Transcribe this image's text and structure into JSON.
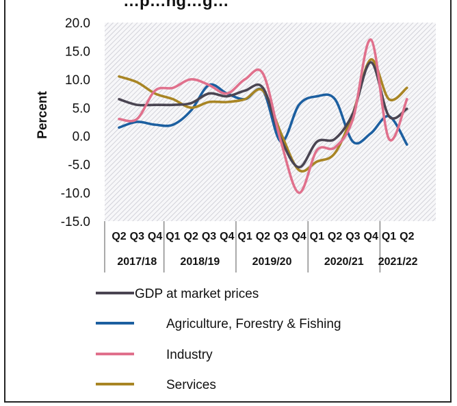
{
  "chart_data": {
    "type": "line",
    "title": "…p…ng…g…",
    "ylabel": "Percent",
    "ylim": [
      -15,
      20
    ],
    "yticks": [
      "20.0",
      "15.0",
      "10.0",
      "5.0",
      "0.0",
      "-5.0",
      "-10.0",
      "-15.0"
    ],
    "quarters": [
      "Q2",
      "Q3",
      "Q4",
      "Q1",
      "Q2",
      "Q3",
      "Q4",
      "Q1",
      "Q2",
      "Q3",
      "Q4",
      "Q1",
      "Q2",
      "Q3",
      "Q4",
      "Q1",
      "Q2"
    ],
    "years": [
      {
        "label": "2017/18"
      },
      {
        "label": "2018/19"
      },
      {
        "label": "2019/20"
      },
      {
        "label": "2020/21"
      },
      {
        "label": "2021/22"
      }
    ],
    "year_spans": [
      [
        0,
        2
      ],
      [
        3,
        6
      ],
      [
        7,
        10
      ],
      [
        11,
        14
      ],
      [
        15,
        16
      ]
    ],
    "series": [
      {
        "name": "GDP at market prices",
        "color": "#4a4552",
        "values": [
          6.5,
          5.5,
          5.5,
          5.5,
          5.8,
          7.5,
          7.0,
          8.0,
          8.5,
          -0.5,
          -5.5,
          -1.0,
          -0.5,
          4.0,
          13.0,
          3.5,
          4.8
        ]
      },
      {
        "name": "Agriculture, Forestry & Fishing",
        "color": "#1c5fa0",
        "values": [
          1.5,
          2.5,
          2.0,
          2.0,
          4.5,
          9.0,
          7.5,
          6.5,
          8.0,
          -1.0,
          5.5,
          7.0,
          6.5,
          -1.0,
          0.5,
          3.5,
          -1.5
        ]
      },
      {
        "name": "Industry",
        "color": "#e0708c",
        "values": [
          3.0,
          3.0,
          8.0,
          8.5,
          10.0,
          9.0,
          7.5,
          10.0,
          11.0,
          -1.0,
          -10.0,
          -2.5,
          -2.0,
          3.0,
          17.0,
          -0.5,
          6.5
        ]
      },
      {
        "name": "Services",
        "color": "#a88524",
        "values": [
          10.5,
          9.5,
          7.5,
          6.5,
          5.0,
          6.0,
          6.0,
          6.5,
          8.0,
          0.5,
          -6.0,
          -4.5,
          -3.0,
          4.0,
          13.5,
          6.5,
          8.5
        ]
      }
    ],
    "legend": {
      "position": "bottom"
    },
    "grid": false,
    "background_pattern": "diagonal-hatch"
  }
}
